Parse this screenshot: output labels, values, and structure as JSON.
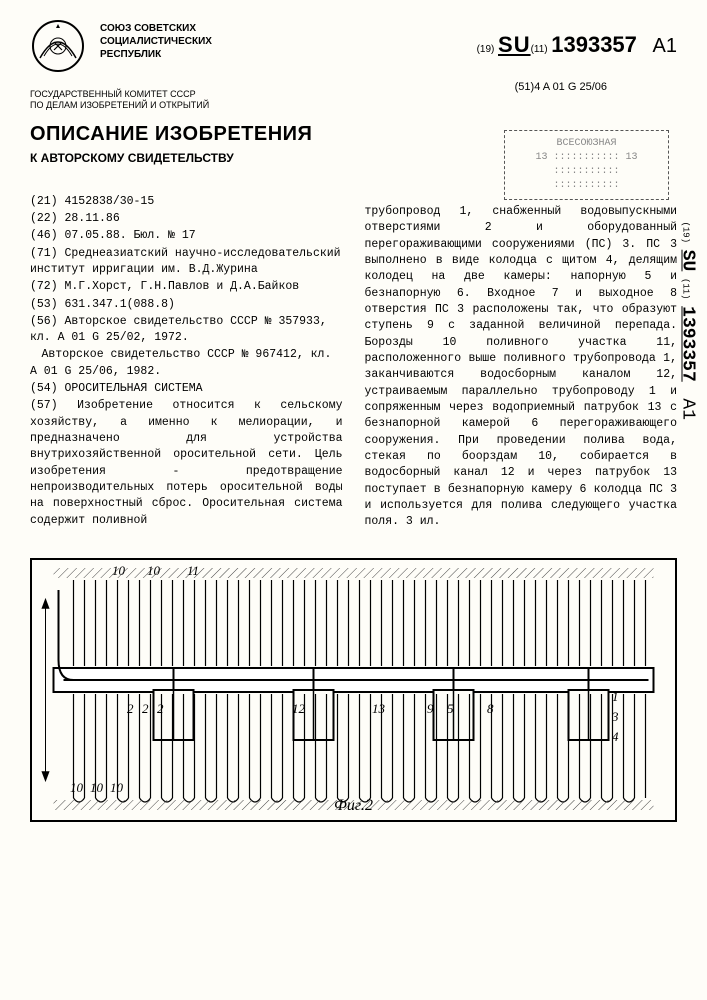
{
  "header": {
    "country_lines": [
      "СОЮЗ СОВЕТСКИХ",
      "СОЦИАЛИСТИЧЕСКИХ",
      "РЕСПУБЛИК"
    ],
    "committee_lines": [
      "ГОСУДАРСТВЕННЫЙ КОМИТЕТ СССР",
      "ПО ДЕЛАМ ИЗОБРЕТЕНИЙ И ОТКРЫТИЙ"
    ],
    "doc_code_prefix": "(19)",
    "doc_code_su": "SU",
    "doc_code_mid": "(11)",
    "doc_number": "1393357",
    "doc_kind": "A1",
    "ipc_prefix": "(51)4",
    "ipc": "A 01 G 25/06"
  },
  "stamp": {
    "line1": "ВСЕСОЮЗНАЯ",
    "line2": "13   :::::::::::   13",
    "line3": ":::::::::::",
    "line4": ":::::::::::"
  },
  "title": {
    "main": "ОПИСАНИЕ ИЗОБРЕТЕНИЯ",
    "sub": "К АВТОРСКОМУ СВИДЕТЕЛЬСТВУ"
  },
  "biblio": {
    "field21": "(21) 4152838/30-15",
    "field22": "(22) 28.11.86",
    "field46": "(46) 07.05.88. Бюл. № 17",
    "field71": "(71) Среднеазиатский научно-исследовательский институт ирригации им. В.Д.Журина",
    "field72": "(72) М.Г.Хорст, Г.Н.Павлов и Д.А.Байков",
    "field53": "(53) 631.347.1(088.8)",
    "field56": "(56) Авторское свидетельство СССР № 357933, кл. A 01 G 25/02, 1972.",
    "field56b": "Авторское свидетельство СССР № 967412, кл. A 01 G 25/06, 1982.",
    "field54": "(54) ОРОСИТЕЛЬНАЯ СИСТЕМА",
    "field57": "(57) Изобретение относится к сельскому хозяйству, а именно к мелиорации, и предназначено для устройства внутрихозяйственной оросительной сети. Цель изобретения - предотвращение непроизводительных потерь оросительной воды на поверхностный сброс. Оросительная система содержит поливной"
  },
  "abstract_right": "трубопровод 1, снабженный водовыпускными отверстиями 2 и оборудованный перегораживающими сооружениями (ПС) 3. ПС 3 выполнено в виде колодца с щитом 4, делящим колодец на две камеры: напорную 5 и безнапорную 6. Входное 7 и выходное 8 отверстия ПС 3 расположены так, что образуют ступень 9 с заданной величиной перепада. Борозды 10 поливного участка 11, расположенного выше поливного трубопровода 1, заканчиваются водосборным каналом 12, устраиваемым параллельно трубопроводу 1 и сопряженным через водоприемный патрубок 13 с безнапорной камерой 6 перегораживающего сооружения. При проведении полива вода, стекая по боорздам 10, собирается в водосборный канал 12 и через патрубок 13 поступает в безнапорную камеру 6 колодца ПС 3 и используется для полива следующего участка поля. 3 ил.",
  "drawing": {
    "label": "Фиг.2",
    "callouts_top": [
      "10",
      "10",
      "11"
    ],
    "callouts_bottom_left": [
      "10",
      "10",
      "10"
    ],
    "callouts_mid": [
      "2",
      "2",
      "2",
      "12",
      "13",
      "9",
      "5",
      "8",
      "1",
      "3",
      "4"
    ],
    "colors": {
      "border": "#000000",
      "hatch": "#444444",
      "pipe": "#000000",
      "background": "#fefdf8"
    },
    "stroke_width": 1.5,
    "hatch_spacing": 6
  },
  "side": {
    "su_prefix": "(19)",
    "su": "SU",
    "mid": "(11)",
    "num": "1393357",
    "a1": "A1"
  }
}
